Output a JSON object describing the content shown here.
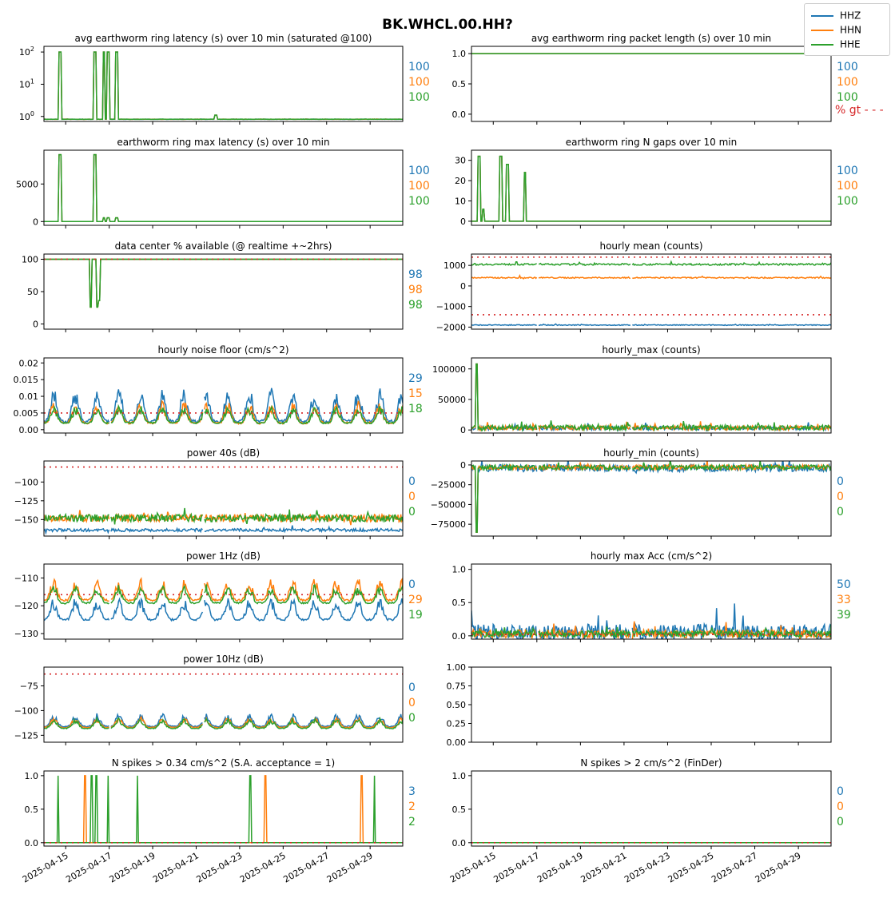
{
  "figure": {
    "suptitle": "BK.WHCL.00.HH?",
    "legend": {
      "placement": "top-right",
      "entries": [
        {
          "name": "HHZ",
          "color": "#1f77b4"
        },
        {
          "name": "HHN",
          "color": "#ff7f0e"
        },
        {
          "name": "HHE",
          "color": "#2ca02c"
        }
      ]
    },
    "threshold_color": "#d62728",
    "gt_label": "% gt - - -"
  },
  "chart_data": [
    {
      "type": "line",
      "title": "avg earthworm ring latency (s)   over 10 min (saturated @100)",
      "yscale": "log",
      "ylim": [
        0.7,
        150
      ],
      "yticks": [
        {
          "v": 1,
          "base": "10",
          "exp": "0"
        },
        {
          "v": 10,
          "base": "10",
          "exp": "1"
        },
        {
          "v": 100,
          "base": "10",
          "exp": "2"
        }
      ],
      "baseline": 0.82,
      "spikes": [
        {
          "day": 0.75,
          "v": 100,
          "w": 0.12
        },
        {
          "day": 2.35,
          "v": 100,
          "w": 0.1
        },
        {
          "day": 2.75,
          "v": 100,
          "w": 0.1
        },
        {
          "day": 2.95,
          "v": 100,
          "w": 0.1
        },
        {
          "day": 3.35,
          "v": 100,
          "w": 0.1
        },
        {
          "day": 7.9,
          "v": 1.1,
          "w": 0.15
        }
      ],
      "stats": [
        "100",
        "100",
        "100"
      ],
      "threshold": null
    },
    {
      "type": "line",
      "title": "avg earthworm ring packet length (s)   over 10 min",
      "ylim": [
        -0.12,
        1.12
      ],
      "yticks": [
        {
          "v": 0,
          "l": "0.0"
        },
        {
          "v": 0.5,
          "l": "0.5"
        },
        {
          "v": 1,
          "l": "1.0"
        }
      ],
      "baseline": 1.0,
      "spikes": [],
      "stats": [
        "100",
        "100",
        "100"
      ],
      "threshold": null,
      "gt": true
    },
    {
      "type": "line",
      "title": "earthworm ring max latency (s)   over 10 min",
      "ylim": [
        -500,
        9500
      ],
      "yticks": [
        {
          "v": 0,
          "l": "0"
        },
        {
          "v": 5000,
          "l": "5000"
        }
      ],
      "baseline": 0,
      "spikes": [
        {
          "day": 0.75,
          "v": 8900,
          "w": 0.12
        },
        {
          "day": 2.35,
          "v": 8900,
          "w": 0.1
        },
        {
          "day": 2.75,
          "v": 500,
          "w": 0.1
        },
        {
          "day": 2.95,
          "v": 500,
          "w": 0.1
        },
        {
          "day": 3.35,
          "v": 500,
          "w": 0.1
        }
      ],
      "stats": [
        "100",
        "100",
        "100"
      ],
      "threshold": null
    },
    {
      "type": "line",
      "title": "earthworm ring N gaps   over 10 min",
      "ylim": [
        -2,
        35
      ],
      "yticks": [
        {
          "v": 0,
          "l": "0"
        },
        {
          "v": 10,
          "l": "10"
        },
        {
          "v": 20,
          "l": "20"
        },
        {
          "v": 30,
          "l": "30"
        }
      ],
      "baseline": 0,
      "spikes": [
        {
          "day": 0.35,
          "v": 32,
          "w": 0.1
        },
        {
          "day": 0.55,
          "v": 6,
          "w": 0.08
        },
        {
          "day": 1.35,
          "v": 32,
          "w": 0.1
        },
        {
          "day": 1.65,
          "v": 28,
          "w": 0.1
        },
        {
          "day": 2.45,
          "v": 24,
          "w": 0.1
        }
      ],
      "stats": [
        "100",
        "100",
        "100"
      ],
      "threshold": null
    },
    {
      "type": "line",
      "title": "data center % available (@ realtime +~2hrs)",
      "ylim": [
        -8,
        108
      ],
      "yticks": [
        {
          "v": 0,
          "l": "0"
        },
        {
          "v": 50,
          "l": "50"
        },
        {
          "v": 100,
          "l": "100"
        }
      ],
      "baseline": 100,
      "spikes": [
        {
          "day": 2.15,
          "v": 26,
          "w": 0.12
        },
        {
          "day": 2.45,
          "v": 26,
          "w": 0.12
        },
        {
          "day": 2.55,
          "v": 36,
          "w": 0.1
        }
      ],
      "stats": [
        "98",
        "98",
        "98"
      ],
      "threshold": 100
    },
    {
      "type": "line",
      "title": "hourly mean (counts)",
      "ylim": [
        -2100,
        1550
      ],
      "yticks": [
        {
          "v": -2000,
          "l": "−2000"
        },
        {
          "v": -1000,
          "l": "−1000"
        },
        {
          "v": 0,
          "l": "0"
        },
        {
          "v": 1000,
          "l": "1000"
        }
      ],
      "levels": [
        -1900,
        400,
        1050
      ],
      "amp": [
        40,
        60,
        80
      ],
      "stats": null,
      "threshold": [
        1400,
        -1400
      ]
    },
    {
      "type": "line",
      "title": "hourly noise floor (cm/s^2)",
      "ylim": [
        -0.001,
        0.0215
      ],
      "yticks": [
        {
          "v": 0,
          "l": "0.00"
        },
        {
          "v": 0.005,
          "l": "0.005"
        },
        {
          "v": 0.01,
          "l": "0.01"
        },
        {
          "v": 0.015,
          "l": "0.015"
        },
        {
          "v": 0.02,
          "l": "0.02"
        }
      ],
      "levels": [
        0.0025,
        0.002,
        0.002
      ],
      "amp": [
        0.008,
        0.005,
        0.004
      ],
      "diurnal": true,
      "stats": [
        "29",
        "15",
        "18"
      ],
      "threshold": 0.005
    },
    {
      "type": "line",
      "title": "hourly_max (counts)",
      "ylim": [
        -5000,
        118000
      ],
      "yticks": [
        {
          "v": 0,
          "l": "0"
        },
        {
          "v": 50000,
          "l": "50000"
        },
        {
          "v": 100000,
          "l": "100000"
        }
      ],
      "levels": [
        3000,
        3500,
        4000
      ],
      "amp": [
        6000,
        7000,
        8000
      ],
      "spikes": [
        {
          "day": 0.25,
          "v": 108000,
          "w": 0.08
        }
      ],
      "stats": null,
      "threshold": null
    },
    {
      "type": "line",
      "title": "power 40s (dB)",
      "ylim": [
        -172,
        -72
      ],
      "yticks": [
        {
          "v": -150,
          "l": "−150"
        },
        {
          "v": -125,
          "l": "−125"
        },
        {
          "v": -100,
          "l": "−100"
        }
      ],
      "levels": [
        -164,
        -148,
        -148
      ],
      "amp": [
        4,
        10,
        10
      ],
      "stats": [
        "0",
        "0",
        "0"
      ],
      "threshold": -80
    },
    {
      "type": "line",
      "title": "hourly_min (counts)",
      "ylim": [
        -90000,
        5000
      ],
      "yticks": [
        {
          "v": -75000,
          "l": "−75000"
        },
        {
          "v": -50000,
          "l": "−50000"
        },
        {
          "v": -25000,
          "l": "−25000"
        },
        {
          "v": 0,
          "l": "0"
        }
      ],
      "levels": [
        -4000,
        -3000,
        -3000
      ],
      "amp": [
        9000,
        6000,
        6000
      ],
      "spikes": [
        {
          "day": 0.25,
          "v": -85000,
          "w": 0.08
        }
      ],
      "stats": [
        "0",
        "0",
        "0"
      ],
      "threshold": null
    },
    {
      "type": "line",
      "title": "power 1Hz (dB)",
      "ylim": [
        -132,
        -105
      ],
      "yticks": [
        {
          "v": -130,
          "l": "−130"
        },
        {
          "v": -120,
          "l": "−120"
        },
        {
          "v": -110,
          "l": "−110"
        }
      ],
      "levels": [
        -125,
        -118,
        -119
      ],
      "amp": [
        6,
        6,
        5
      ],
      "diurnal": true,
      "stats": [
        "0",
        "29",
        "19"
      ],
      "threshold": -116
    },
    {
      "type": "line",
      "title": "hourly max Acc (cm/s^2)",
      "ylim": [
        -0.05,
        1.08
      ],
      "yticks": [
        {
          "v": 0,
          "l": "0.0"
        },
        {
          "v": 0.5,
          "l": "0.5"
        },
        {
          "v": 1,
          "l": "1.0"
        }
      ],
      "levels": [
        0.05,
        0.03,
        0.03
      ],
      "amp": [
        0.25,
        0.12,
        0.1
      ],
      "stats": [
        "50",
        "33",
        "39"
      ],
      "threshold": 0.02
    },
    {
      "type": "line",
      "title": "power 10Hz (dB)",
      "ylim": [
        -132,
        -56
      ],
      "yticks": [
        {
          "v": -125,
          "l": "−125"
        },
        {
          "v": -100,
          "l": "−100"
        },
        {
          "v": -75,
          "l": "−75"
        }
      ],
      "levels": [
        -116,
        -117,
        -118
      ],
      "amp": [
        10,
        8,
        8
      ],
      "diurnal": true,
      "stats": [
        "0",
        "0",
        "0"
      ],
      "threshold": -63
    },
    {
      "type": "empty",
      "title": "",
      "ylim": [
        0,
        1
      ],
      "yticks": [
        {
          "v": 0,
          "l": "0.00"
        },
        {
          "v": 0.25,
          "l": "0.25"
        },
        {
          "v": 0.5,
          "l": "0.50"
        },
        {
          "v": 0.75,
          "l": "0.75"
        },
        {
          "v": 1,
          "l": "1.00"
        }
      ],
      "stats": null,
      "threshold": null
    },
    {
      "type": "line",
      "title": "N spikes > 0.34 cm/s^2 (S.A. acceptance = 1)",
      "ylim": [
        -0.05,
        1.07
      ],
      "yticks": [
        {
          "v": 0,
          "l": "0.0"
        },
        {
          "v": 0.5,
          "l": "0.5"
        },
        {
          "v": 1,
          "l": "1.0"
        }
      ],
      "baseline": 0,
      "spikes": [
        {
          "day": 0.65,
          "v": 1,
          "w": 0.08,
          "s": 2
        },
        {
          "day": 1.9,
          "v": 1,
          "w": 0.08,
          "s": 1
        },
        {
          "day": 2.2,
          "v": 1,
          "w": 0.08,
          "s": 2
        },
        {
          "day": 2.4,
          "v": 1,
          "w": 0.08,
          "s": 2
        },
        {
          "day": 2.95,
          "v": 1,
          "w": 0.08,
          "s": 2
        },
        {
          "day": 4.3,
          "v": 1,
          "w": 0.08,
          "s": 2
        },
        {
          "day": 9.5,
          "v": 1,
          "w": 0.08,
          "s": 2
        },
        {
          "day": 10.2,
          "v": 1,
          "w": 0.08,
          "s": 1
        },
        {
          "day": 14.6,
          "v": 1,
          "w": 0.08,
          "s": 1
        },
        {
          "day": 15.2,
          "v": 1,
          "w": 0.08,
          "s": 2
        }
      ],
      "stats": [
        "3",
        "2",
        "2"
      ],
      "threshold": 0
    },
    {
      "type": "line",
      "title": "N spikes > 2 cm/s^2 (FinDer)",
      "ylim": [
        -0.05,
        1.07
      ],
      "yticks": [
        {
          "v": 0,
          "l": "0.0"
        },
        {
          "v": 0.5,
          "l": "0.5"
        },
        {
          "v": 1,
          "l": "1.0"
        }
      ],
      "baseline": 0,
      "spikes": [],
      "stats": [
        "0",
        "0",
        "0"
      ],
      "threshold": 0
    }
  ],
  "xaxis": {
    "start": "2025-04-14",
    "end": "2025-04-30T12:00",
    "ticks": [
      "2025-04-15",
      "2025-04-17",
      "2025-04-19",
      "2025-04-21",
      "2025-04-23",
      "2025-04-25",
      "2025-04-27",
      "2025-04-29"
    ]
  }
}
